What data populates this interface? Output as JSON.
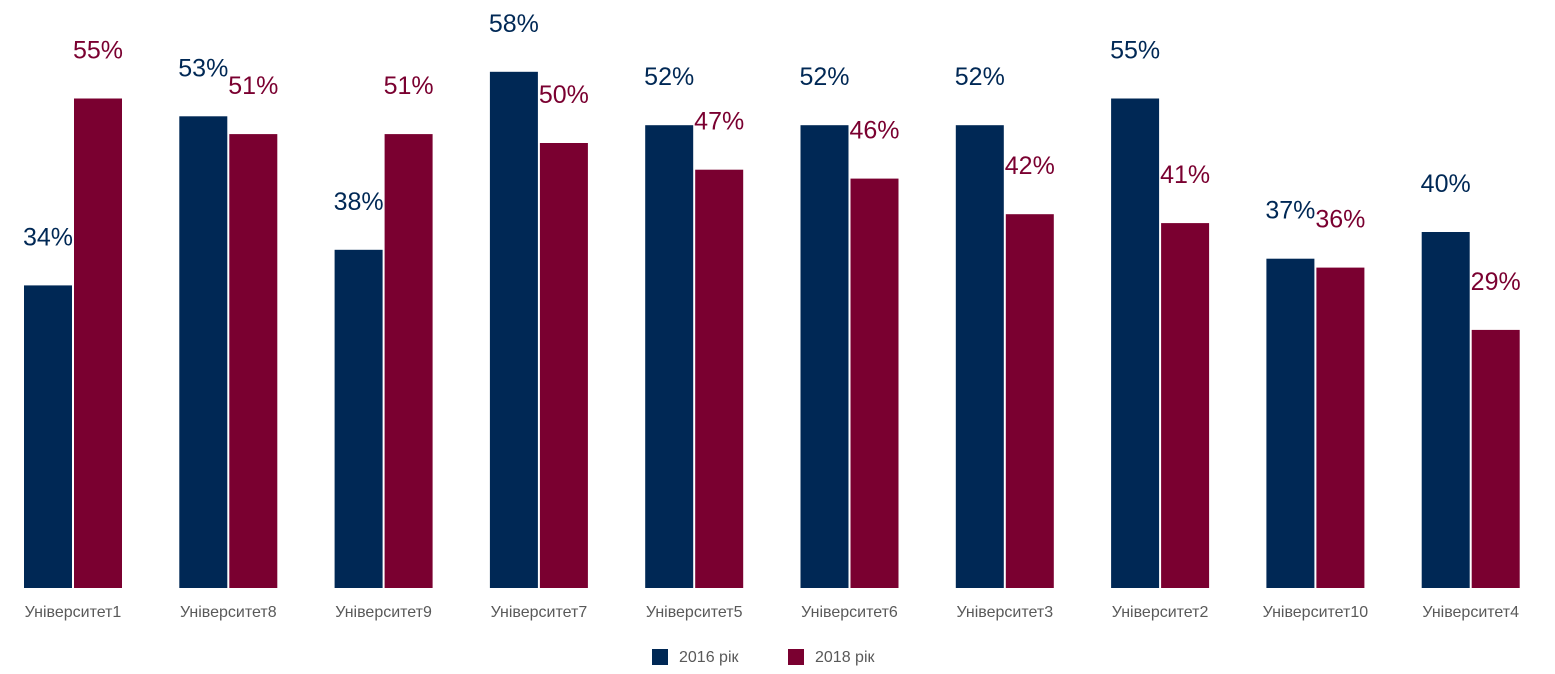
{
  "chart_data": {
    "type": "bar",
    "categories": [
      "Університет1",
      "Університет8",
      "Університет9",
      "Університет7",
      "Університет5",
      "Університет6",
      "Університет3",
      "Університет2",
      "Університет10",
      "Університет4"
    ],
    "series": [
      {
        "name": "2016 рік",
        "values": [
          34,
          53,
          38,
          58,
          52,
          52,
          52,
          55,
          37,
          40
        ],
        "color": "#002855"
      },
      {
        "name": "2018 рік",
        "values": [
          55,
          51,
          51,
          50,
          47,
          46,
          42,
          41,
          36,
          29
        ],
        "color": "#7a0030"
      }
    ],
    "value_suffix": "%",
    "ylim": [
      0,
      66
    ],
    "grid": false,
    "legend_position": "bottom-center",
    "title": "",
    "xlabel": "",
    "ylabel": ""
  }
}
